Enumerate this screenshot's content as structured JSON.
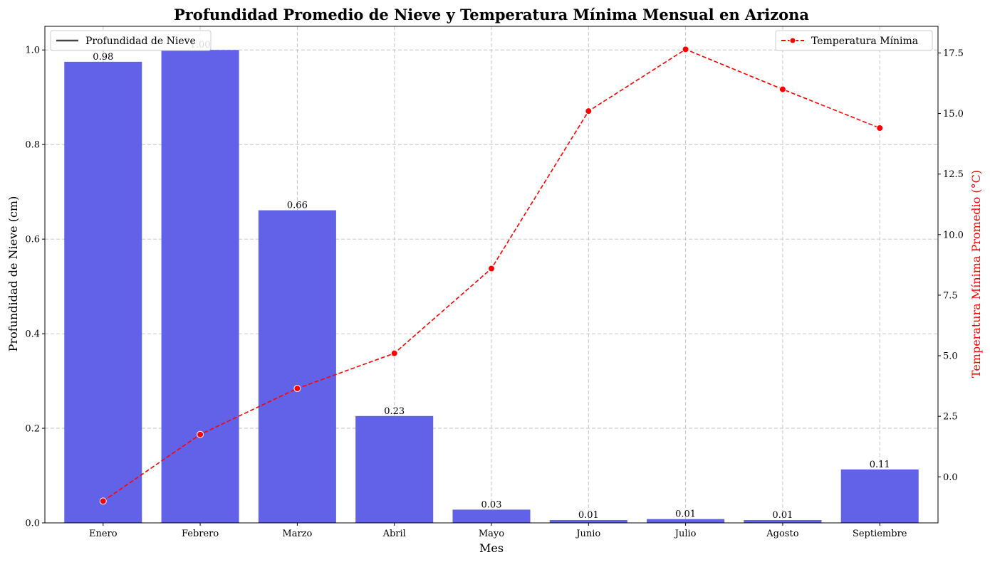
{
  "chart_data": {
    "type": "bar+line",
    "title": "Profundidad Promedio de Nieve y Temperatura Mínima Mensual en Arizona",
    "xlabel": "Mes",
    "ylabel_left": "Profundidad de Nieve (cm)",
    "ylabel_right": "Temperatura Mínima Promedio (°C)",
    "categories": [
      "Enero",
      "Febrero",
      "Marzo",
      "Abril",
      "Mayo",
      "Junio",
      "Julio",
      "Agosto",
      "Septiembre"
    ],
    "ylim_left": [
      0,
      1.05
    ],
    "ylim_right": [
      -1.9,
      18.6
    ],
    "yticks_left": [
      "0.0",
      "0.2",
      "0.4",
      "0.6",
      "0.8",
      "1.0"
    ],
    "yticks_right": [
      "0.0",
      "2.5",
      "5.0",
      "7.5",
      "10.0",
      "12.5",
      "15.0",
      "17.5"
    ],
    "grid": true,
    "series": [
      {
        "name": "Profundidad de Nieve",
        "kind": "bar",
        "axis": "left",
        "color": "#6262e8",
        "values": [
          0.975,
          1.0,
          0.661,
          0.226,
          0.028,
          0.006,
          0.008,
          0.006,
          0.113
        ],
        "labels": [
          "0.98",
          "1.00",
          "0.66",
          "0.23",
          "0.03",
          "0.01",
          "0.01",
          "0.01",
          "0.11"
        ]
      },
      {
        "name": "Temperatura Mínima",
        "kind": "line",
        "axis": "right",
        "color": "#ff0000",
        "linestyle": "dashed",
        "marker": "circle",
        "values": [
          -1.0,
          1.75,
          3.65,
          5.1,
          8.6,
          15.1,
          17.65,
          16.0,
          14.4
        ]
      }
    ],
    "legends": [
      {
        "position": "upper-left",
        "label": "Profundidad de Nieve",
        "swatch": "line",
        "color": "#444444"
      },
      {
        "position": "upper-right",
        "label": "Temperatura Mínima",
        "swatch": "dashed-marker",
        "color": "#ff0000"
      }
    ]
  }
}
